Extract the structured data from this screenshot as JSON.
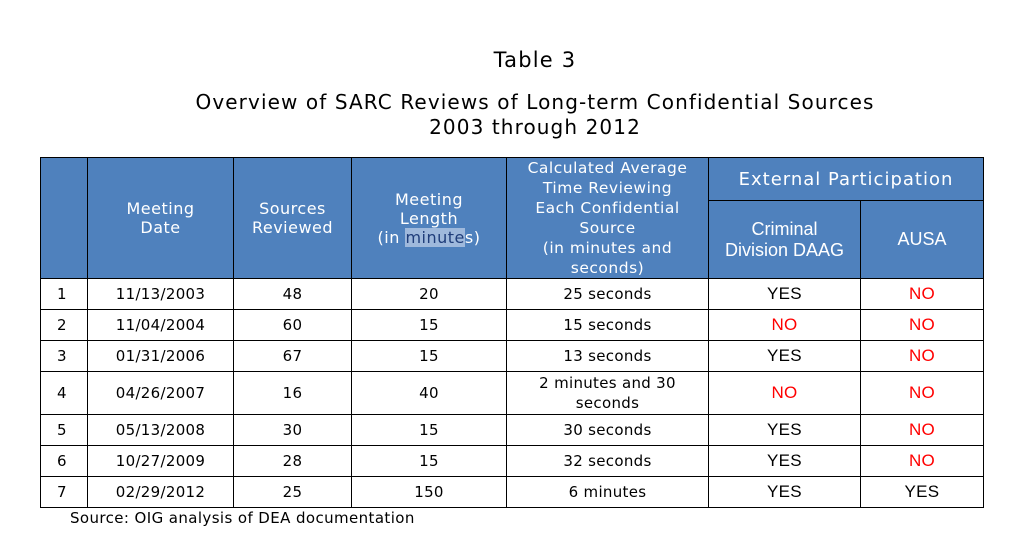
{
  "table_label": "Table 3",
  "title_line1": "Overview of SARC Reviews of Long-term Confidential Sources",
  "title_line2": "2003 through 2012",
  "headers": {
    "meeting_date_l1": "Meeting",
    "meeting_date_l2": "Date",
    "sources_l1": "Sources",
    "sources_l2": "Reviewed",
    "length_l1": "Meeting",
    "length_l2": "Length",
    "length_l3_pre": "(in ",
    "length_l3_hl1": "minute",
    "length_l3_mid": "s",
    "length_l3_post": ")",
    "avg_l1": "Calculated Average",
    "avg_l2": "Time Reviewing",
    "avg_l3": "Each Confidential",
    "avg_l4": "Source",
    "avg_l5": "(in minutes and",
    "avg_l6": "seconds)",
    "external": "External Participation",
    "criminal_l1": "Criminal",
    "criminal_l2": "Division DAAG",
    "ausa": "AUSA"
  },
  "rows": [
    {
      "num": "1",
      "date": "11/13/2003",
      "sources": "48",
      "length": "20",
      "avg_a": "25 seconds",
      "avg_b": "",
      "daag": "YES",
      "ausa": "NO"
    },
    {
      "num": "2",
      "date": "11/04/2004",
      "sources": "60",
      "length": "15",
      "avg_a": "15 seconds",
      "avg_b": "",
      "daag": "NO",
      "ausa": "NO"
    },
    {
      "num": "3",
      "date": "01/31/2006",
      "sources": "67",
      "length": "15",
      "avg_a": "13 seconds",
      "avg_b": "",
      "daag": "YES",
      "ausa": "NO"
    },
    {
      "num": "4",
      "date": "04/26/2007",
      "sources": "16",
      "length": "40",
      "avg_a": "2 minutes and 30",
      "avg_b": "seconds",
      "daag": "NO",
      "ausa": "NO"
    },
    {
      "num": "5",
      "date": "05/13/2008",
      "sources": "30",
      "length": "15",
      "avg_a": "30 seconds",
      "avg_b": "",
      "daag": "YES",
      "ausa": "NO"
    },
    {
      "num": "6",
      "date": "10/27/2009",
      "sources": "28",
      "length": "15",
      "avg_a": "32 seconds",
      "avg_b": "",
      "daag": "YES",
      "ausa": "NO"
    },
    {
      "num": "7",
      "date": "02/29/2012",
      "sources": "25",
      "length": "150",
      "avg_a": "6 minutes",
      "avg_b": "",
      "daag": "YES",
      "ausa": "YES"
    }
  ],
  "source_note": "Source:  OIG analysis of DEA documentation",
  "colors": {
    "header_bg": "#4f81bd",
    "no": "#ff0000",
    "yes": "#000000"
  }
}
